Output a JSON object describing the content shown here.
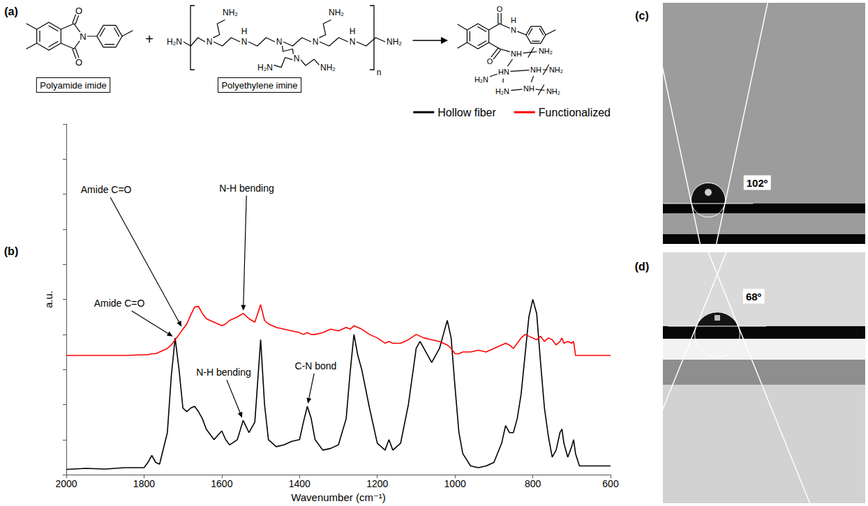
{
  "chart_data": {
    "type": "line",
    "x_label": "Wavenumber (cm⁻¹)",
    "y_label": "a.u.",
    "x": [
      2000,
      1950,
      1900,
      1850,
      1800,
      1790,
      1780,
      1770,
      1760,
      1740,
      1730,
      1720,
      1710,
      1700,
      1690,
      1680,
      1670,
      1660,
      1650,
      1640,
      1620,
      1600,
      1590,
      1580,
      1560,
      1545,
      1530,
      1515,
      1500,
      1490,
      1480,
      1460,
      1440,
      1420,
      1400,
      1390,
      1380,
      1370,
      1360,
      1340,
      1320,
      1300,
      1280,
      1270,
      1260,
      1250,
      1240,
      1220,
      1200,
      1180,
      1170,
      1160,
      1140,
      1120,
      1100,
      1090,
      1080,
      1060,
      1040,
      1030,
      1020,
      1010,
      1000,
      990,
      980,
      960,
      940,
      920,
      900,
      880,
      870,
      860,
      850,
      840,
      830,
      820,
      810,
      800,
      790,
      780,
      770,
      760,
      750,
      740,
      730,
      725,
      720,
      710,
      700,
      695,
      690,
      680,
      650,
      600
    ],
    "series": [
      {
        "name": "Hollow fiber",
        "color": "#000000",
        "values": [
          0.15,
          0.18,
          0.16,
          0.2,
          0.2,
          0.35,
          0.55,
          0.35,
          0.3,
          1.2,
          2.8,
          3.9,
          3.0,
          1.9,
          1.8,
          1.9,
          1.95,
          1.8,
          1.6,
          1.3,
          1.0,
          1.25,
          1.0,
          0.85,
          1.0,
          1.55,
          1.2,
          1.5,
          3.85,
          2.0,
          1.0,
          0.8,
          0.85,
          0.95,
          1.0,
          1.5,
          1.95,
          1.6,
          1.0,
          0.7,
          0.75,
          0.85,
          1.6,
          2.9,
          4.0,
          3.4,
          3.0,
          1.9,
          0.9,
          0.7,
          1.0,
          0.7,
          0.9,
          2.0,
          3.6,
          3.8,
          3.6,
          3.2,
          3.6,
          4.0,
          4.4,
          3.9,
          2.5,
          1.2,
          0.6,
          0.25,
          0.2,
          0.25,
          0.35,
          0.9,
          1.4,
          1.2,
          1.2,
          1.6,
          2.3,
          3.4,
          4.5,
          5.0,
          4.6,
          3.2,
          1.9,
          1.1,
          0.5,
          0.7,
          1.2,
          1.3,
          0.9,
          0.5,
          0.8,
          1.0,
          0.6,
          0.25,
          0.25,
          0.25
        ]
      },
      {
        "name": "Functionalized",
        "color": "#ff0000",
        "values": [
          3.4,
          3.4,
          3.4,
          3.4,
          3.42,
          3.42,
          3.45,
          3.45,
          3.5,
          3.6,
          3.7,
          3.85,
          4.0,
          4.15,
          4.3,
          4.55,
          4.78,
          4.8,
          4.6,
          4.45,
          4.35,
          4.25,
          4.3,
          4.4,
          4.5,
          4.6,
          4.45,
          4.35,
          4.85,
          4.4,
          4.3,
          4.2,
          4.15,
          4.1,
          4.05,
          4.0,
          4.05,
          4.0,
          4.0,
          4.05,
          4.15,
          4.1,
          4.2,
          4.15,
          4.25,
          4.2,
          4.15,
          4.0,
          3.9,
          3.75,
          3.8,
          3.75,
          3.75,
          3.85,
          4.0,
          3.95,
          3.9,
          3.85,
          3.8,
          3.75,
          3.7,
          3.6,
          3.45,
          3.45,
          3.5,
          3.5,
          3.55,
          3.5,
          3.6,
          3.7,
          3.75,
          3.7,
          3.6,
          3.75,
          3.9,
          4.0,
          3.95,
          3.9,
          3.85,
          3.95,
          3.8,
          3.9,
          3.85,
          3.7,
          3.8,
          3.9,
          3.75,
          3.8,
          3.75,
          3.8,
          3.4,
          3.4,
          3.4,
          3.4
        ]
      }
    ],
    "xlim": [
      2000,
      600
    ],
    "xticks": [
      2000,
      1800,
      1600,
      1400,
      1200,
      1000,
      800,
      600
    ],
    "ylim": [
      0,
      10
    ],
    "yticks": [
      0,
      1,
      2,
      3,
      4,
      5,
      6,
      7,
      8,
      9,
      10
    ],
    "tick_labels": "x",
    "grid": false,
    "legend": "top-right",
    "annotations": [
      {
        "text": "Amide C=O",
        "x": 1720,
        "y": 3.9
      },
      {
        "text": "N-H bending",
        "x": 1545,
        "y": 1.55
      },
      {
        "text": "C-N bond",
        "x": 1380,
        "y": 1.95
      },
      {
        "text": "Amide C=O",
        "x": 1700,
        "y": 4.15
      },
      {
        "text": "N-H bending",
        "x": 1545,
        "y": 4.6
      }
    ]
  },
  "figure": {
    "panel_labels": [
      "(a)",
      "(b)",
      "(c)",
      "(d)"
    ],
    "scheme": {
      "reactant1": {
        "name": "Polyamide imide",
        "atoms": [
          "O",
          "N",
          "O"
        ]
      },
      "operator": "+",
      "reactant2": {
        "name": "Polyethylene imine",
        "atoms": [
          "H₂N",
          "N",
          "NH₂",
          "N",
          "H",
          "N",
          "N",
          "H₂N",
          "NH₂",
          "N",
          "NH₂",
          "N",
          "H",
          "NH₂"
        ],
        "repeat": "n"
      },
      "product": {
        "atoms": [
          "O",
          "H",
          "N",
          "O",
          "NH",
          "NH₂",
          "HN",
          "NH",
          "NH₂",
          "H₂N",
          "H₂N",
          "NH",
          "NH₂"
        ]
      }
    },
    "contact_angles": [
      {
        "value": 102,
        "label": "102º"
      },
      {
        "value": 68,
        "label": "68º"
      }
    ]
  }
}
